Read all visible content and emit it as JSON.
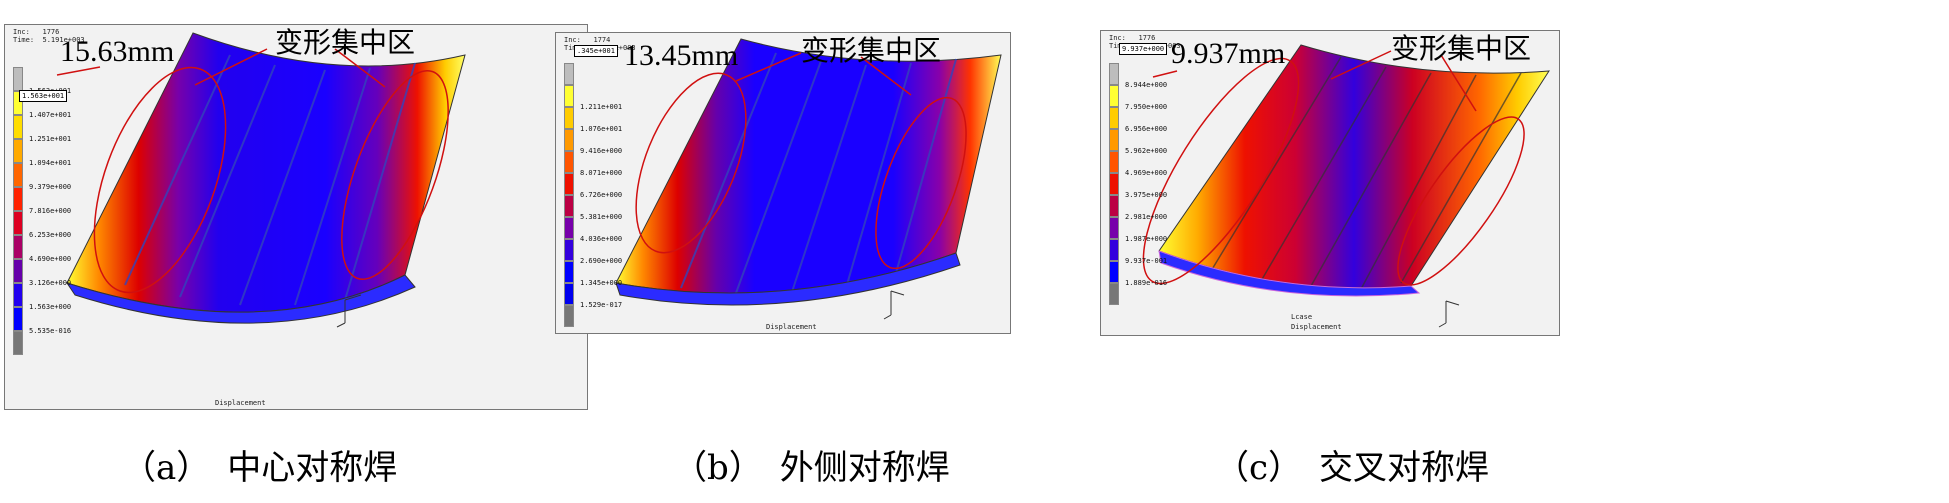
{
  "panels": [
    {
      "header": "Inc:   1776\nTime:  5.191e+003",
      "max_value_text": "1.563e+001",
      "max_display": "15.63mm",
      "zone_label": "变形集中区",
      "legend_labels": [
        "1.563e+001",
        "1.407e+001",
        "1.251e+001",
        "1.094e+001",
        "9.379e+000",
        "7.816e+000",
        "6.253e+000",
        "4.690e+000",
        "3.126e+000",
        "1.563e+000",
        "5.535e-016"
      ],
      "footer": "Displacement",
      "caption": "（a）　中心对称焊"
    },
    {
      "header": "Inc:   1774\nTime:  5.191e+003",
      "max_value_text": ".345e+001",
      "max_display": "13.45mm",
      "zone_label": "变形集中区",
      "legend_labels": [
        "1.211e+001",
        "1.076e+001",
        "9.416e+000",
        "8.071e+000",
        "6.726e+000",
        "5.381e+000",
        "4.036e+000",
        "2.690e+000",
        "1.345e+000",
        "1.529e-017"
      ],
      "footer": "Displacement",
      "caption": "（b）　外侧对称焊"
    },
    {
      "header": "Inc:   1776\nTime:  5.191e+003",
      "max_value_text": "9.937e+000",
      "max_display": "9.937mm",
      "zone_label": "变形集中区",
      "legend_labels": [
        "8.944e+000",
        "7.950e+000",
        "6.956e+000",
        "5.962e+000",
        "4.969e+000",
        "3.975e+000",
        "2.981e+000",
        "1.987e+000",
        "9.937e-001",
        "1.889e-016"
      ],
      "footer_top": "Lcase",
      "footer": "Displacement",
      "caption": "（c）　交叉对称焊"
    }
  ],
  "colors": {
    "contour_ramp": [
      "#bdbdbd",
      "#ffff33",
      "#ffdd00",
      "#ffaa00",
      "#ff7700",
      "#ff3300",
      "#ee0000",
      "#cc0044",
      "#880099",
      "#5500cc",
      "#2200ee",
      "#0000ff",
      "#777777"
    ],
    "annotation_line": "#d01010"
  }
}
